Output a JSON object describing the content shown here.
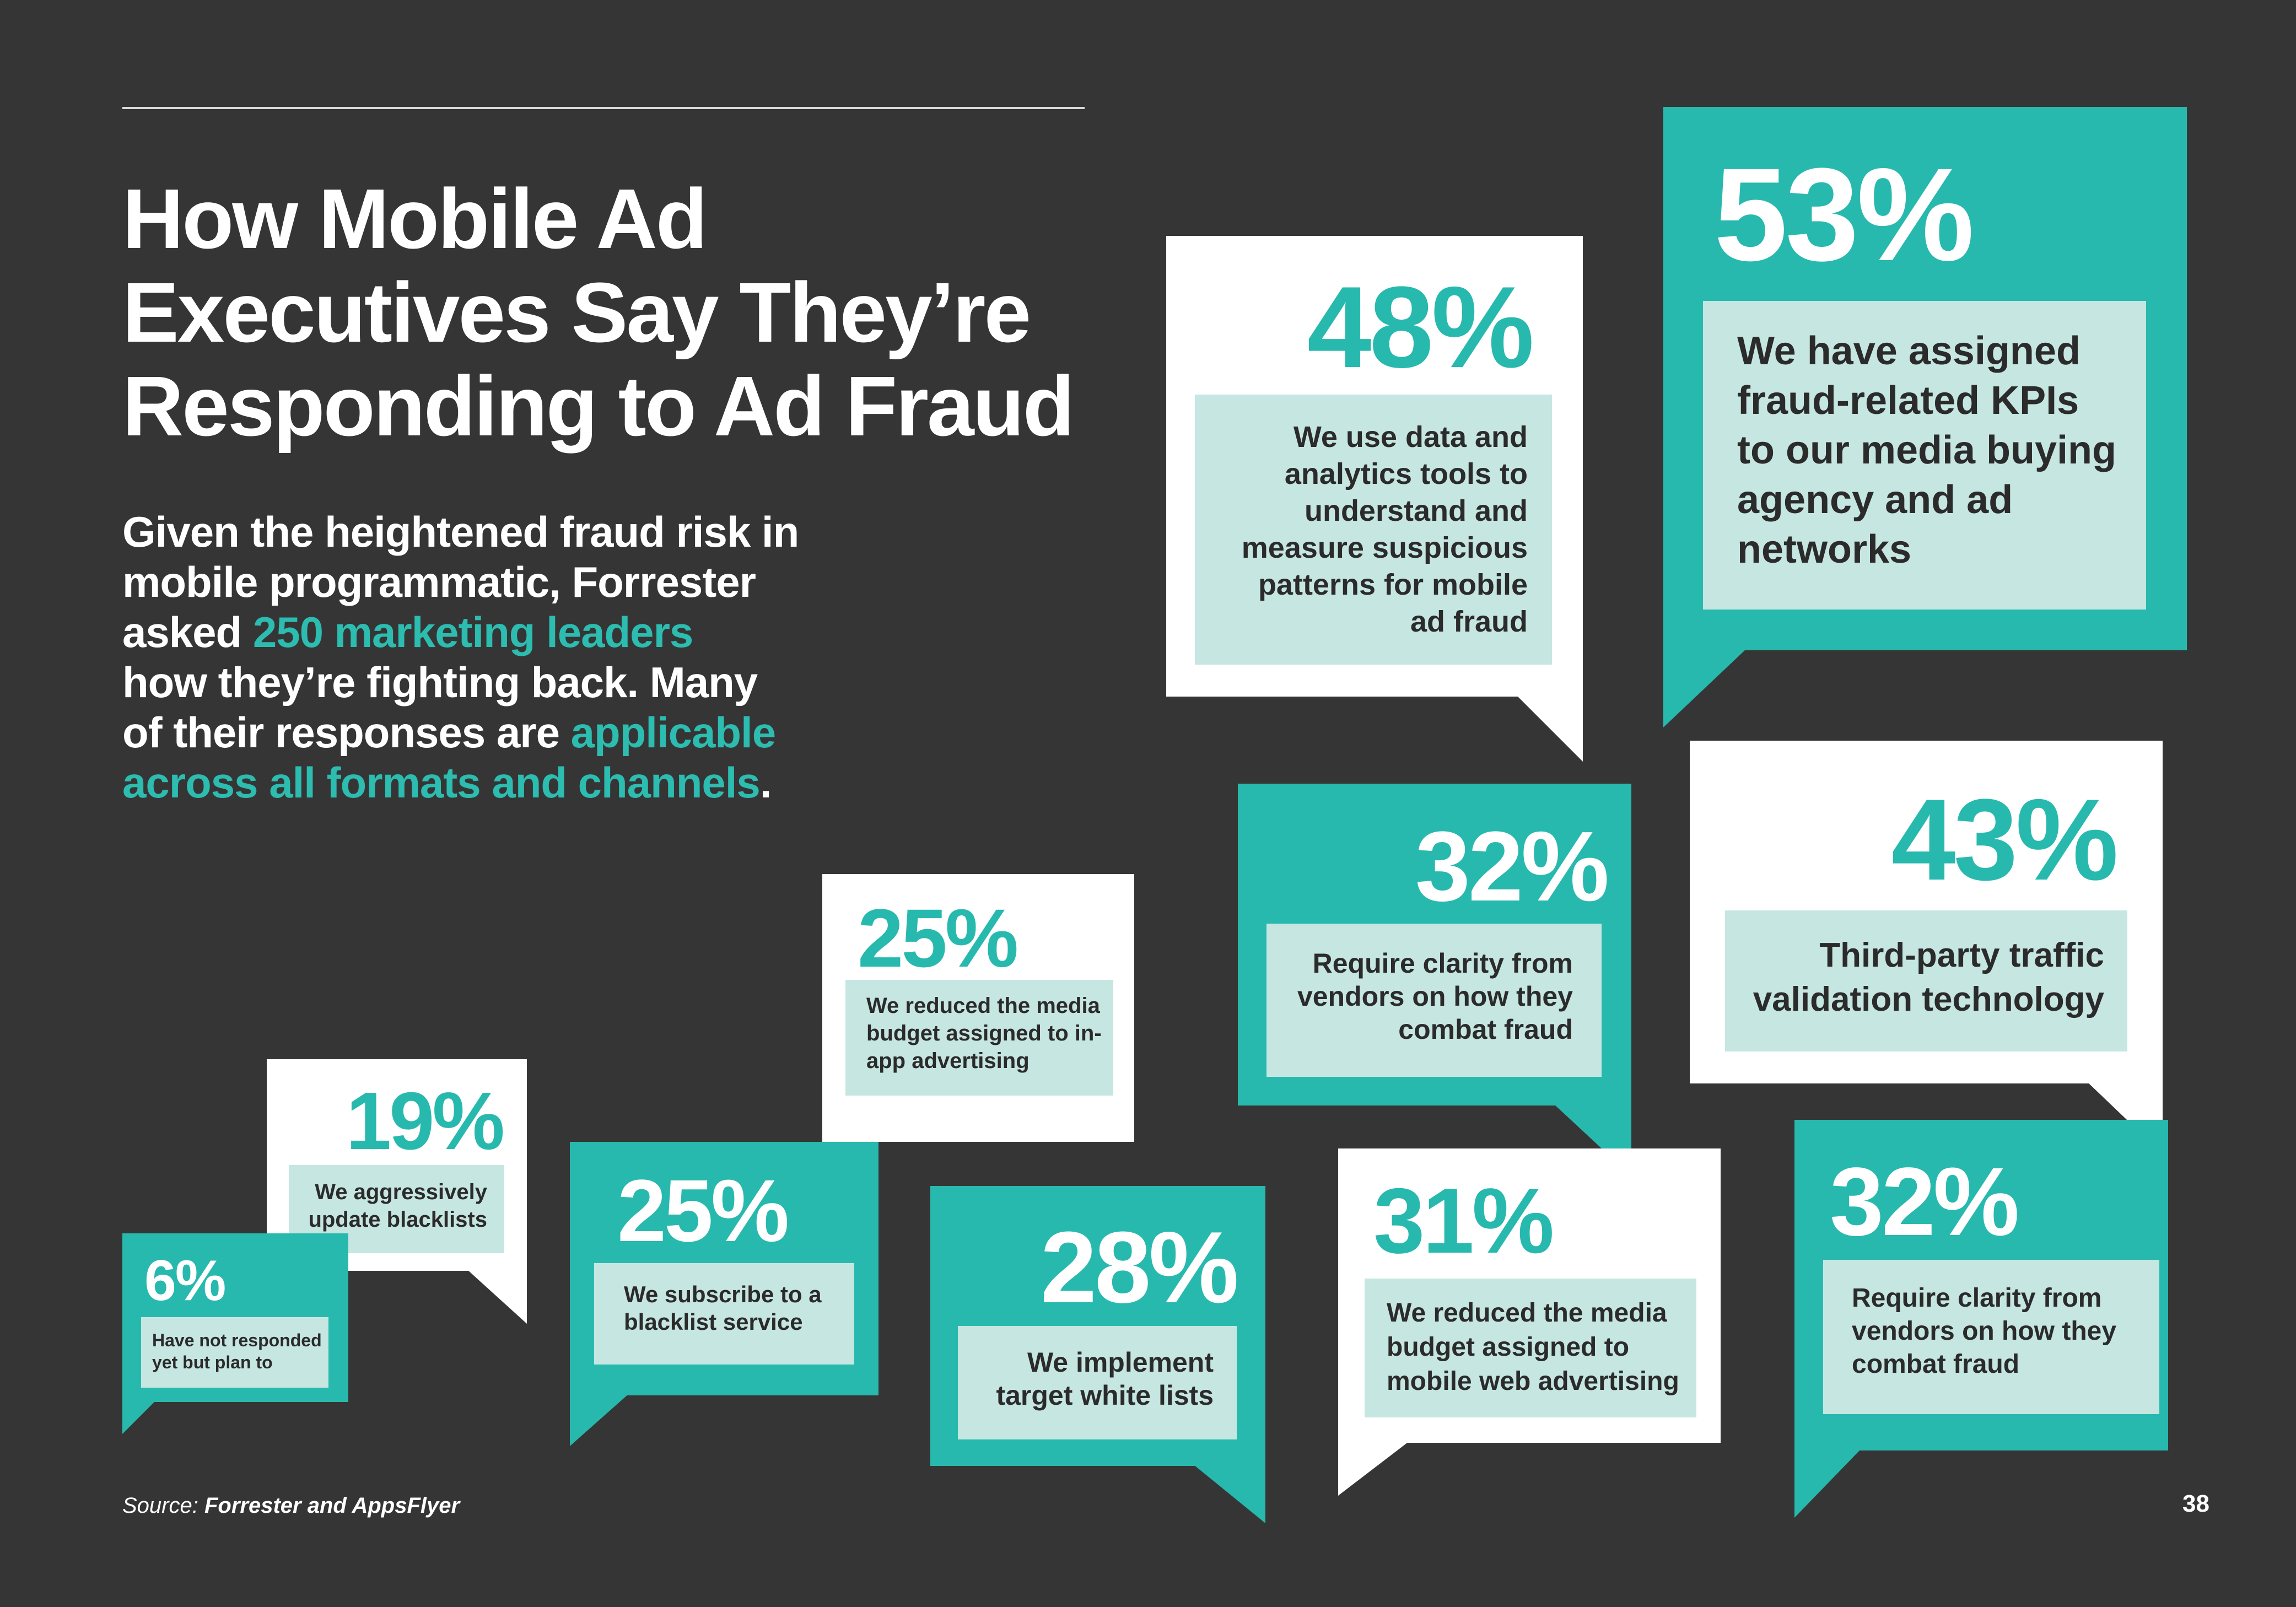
{
  "title_lines": [
    "How Mobile Ad",
    "Executives Say They’re",
    "Responding to Ad Fraud"
  ],
  "intro": {
    "l1": "Given the heightened fraud risk in",
    "l2": "mobile programmatic, Forrester",
    "l3_a": "asked ",
    "l3_b": "250 marketing leaders",
    "l4": "how they’re fighting back. Many",
    "l5_a": "of their responses are ",
    "l5_b": "applicable",
    "l6_a": "across all formats and channels",
    "l6_b": "."
  },
  "stats": [
    {
      "pct": "48%",
      "lines": [
        "We use data and",
        "analytics tools to",
        "understand and",
        "measure suspicious",
        "patterns for mobile",
        "ad fraud"
      ]
    },
    {
      "pct": "53%",
      "lines": [
        "We have assigned",
        "fraud-related KPIs",
        "to our media buying",
        "agency and ad",
        "networks"
      ]
    },
    {
      "pct": "32%",
      "lines": [
        "Require clarity from",
        "vendors on how they",
        "combat fraud"
      ]
    },
    {
      "pct": "43%",
      "lines": [
        "Third-party traffic",
        "validation technology"
      ]
    },
    {
      "pct": "25%",
      "lines": [
        "We reduced the media",
        "budget assigned to in-",
        "app advertising"
      ]
    },
    {
      "pct": "19%",
      "lines": [
        "We aggressively",
        "update blacklists"
      ]
    },
    {
      "pct": "25%",
      "lines": [
        "We subscribe to a",
        "blacklist service"
      ]
    },
    {
      "pct": "28%",
      "lines": [
        "We implement",
        "target white lists"
      ]
    },
    {
      "pct": "31%",
      "lines": [
        "We reduced the media",
        "budget assigned to",
        "mobile web advertising"
      ]
    },
    {
      "pct": "32%",
      "lines": [
        "Require clarity from",
        "vendors on how they",
        "combat fraud"
      ]
    },
    {
      "pct": "6%",
      "lines": [
        "Have not responded",
        "yet but plan to"
      ]
    }
  ],
  "source_label": "Source:",
  "source_text": " Forrester and AppsFlyer",
  "page_number": "38",
  "colors": {
    "background": "#363535",
    "teal": "#28b9ae",
    "light_teal": "#c6e6e1",
    "white": "#ffffff"
  }
}
